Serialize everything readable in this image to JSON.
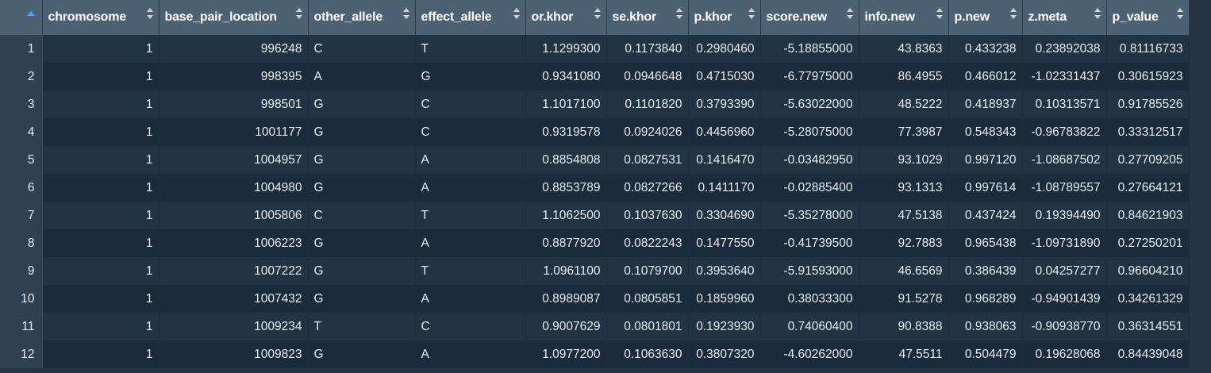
{
  "table": {
    "columns": [
      "chromosome",
      "base_pair_location",
      "other_allele",
      "effect_allele",
      "or.khor",
      "se.khor",
      "p.khor",
      "score.new",
      "info.new",
      "p.new",
      "z.meta",
      "p_value"
    ],
    "rows": [
      {
        "index": "1",
        "cells": [
          "1",
          "996248",
          "C",
          "T",
          "1.1299300",
          "0.1173840",
          "0.2980460",
          "-5.18855000",
          "43.8363",
          "0.433238",
          "0.23892038",
          "0.81116733"
        ]
      },
      {
        "index": "2",
        "cells": [
          "1",
          "998395",
          "A",
          "G",
          "0.9341080",
          "0.0946648",
          "0.4715030",
          "-6.77975000",
          "86.4955",
          "0.466012",
          "-1.02331437",
          "0.30615923"
        ]
      },
      {
        "index": "3",
        "cells": [
          "1",
          "998501",
          "G",
          "C",
          "1.1017100",
          "0.1101820",
          "0.3793390",
          "-5.63022000",
          "48.5222",
          "0.418937",
          "0.10313571",
          "0.91785526"
        ]
      },
      {
        "index": "4",
        "cells": [
          "1",
          "1001177",
          "G",
          "C",
          "0.9319578",
          "0.0924026",
          "0.4456960",
          "-5.28075000",
          "77.3987",
          "0.548343",
          "-0.96783822",
          "0.33312517"
        ]
      },
      {
        "index": "5",
        "cells": [
          "1",
          "1004957",
          "G",
          "A",
          "0.8854808",
          "0.0827531",
          "0.1416470",
          "-0.03482950",
          "93.1029",
          "0.997120",
          "-1.08687502",
          "0.27709205"
        ]
      },
      {
        "index": "6",
        "cells": [
          "1",
          "1004980",
          "G",
          "A",
          "0.8853789",
          "0.0827266",
          "0.1411170",
          "-0.02885400",
          "93.1313",
          "0.997614",
          "-1.08789557",
          "0.27664121"
        ]
      },
      {
        "index": "7",
        "cells": [
          "1",
          "1005806",
          "C",
          "T",
          "1.1062500",
          "0.1037630",
          "0.3304690",
          "-5.35278000",
          "47.5138",
          "0.437424",
          "0.19394490",
          "0.84621903"
        ]
      },
      {
        "index": "8",
        "cells": [
          "1",
          "1006223",
          "G",
          "A",
          "0.8877920",
          "0.0822243",
          "0.1477550",
          "-0.41739500",
          "92.7883",
          "0.965438",
          "-1.09731890",
          "0.27250201"
        ]
      },
      {
        "index": "9",
        "cells": [
          "1",
          "1007222",
          "G",
          "T",
          "1.0961100",
          "0.1079700",
          "0.3953640",
          "-5.91593000",
          "46.6569",
          "0.386439",
          "0.04257277",
          "0.96604210"
        ]
      },
      {
        "index": "10",
        "cells": [
          "1",
          "1007432",
          "G",
          "A",
          "0.8989087",
          "0.0805851",
          "0.1859960",
          "0.38033300",
          "91.5278",
          "0.968289",
          "-0.94901439",
          "0.34261329"
        ]
      },
      {
        "index": "11",
        "cells": [
          "1",
          "1009234",
          "T",
          "C",
          "0.9007629",
          "0.0801801",
          "0.1923930",
          "0.74060400",
          "90.8388",
          "0.938063",
          "-0.90938770",
          "0.36314551"
        ]
      },
      {
        "index": "12",
        "cells": [
          "1",
          "1009823",
          "G",
          "A",
          "1.0977200",
          "0.1063630",
          "0.3807320",
          "-4.60262000",
          "47.5511",
          "0.504479",
          "0.19628068",
          "0.84439048"
        ]
      }
    ]
  }
}
